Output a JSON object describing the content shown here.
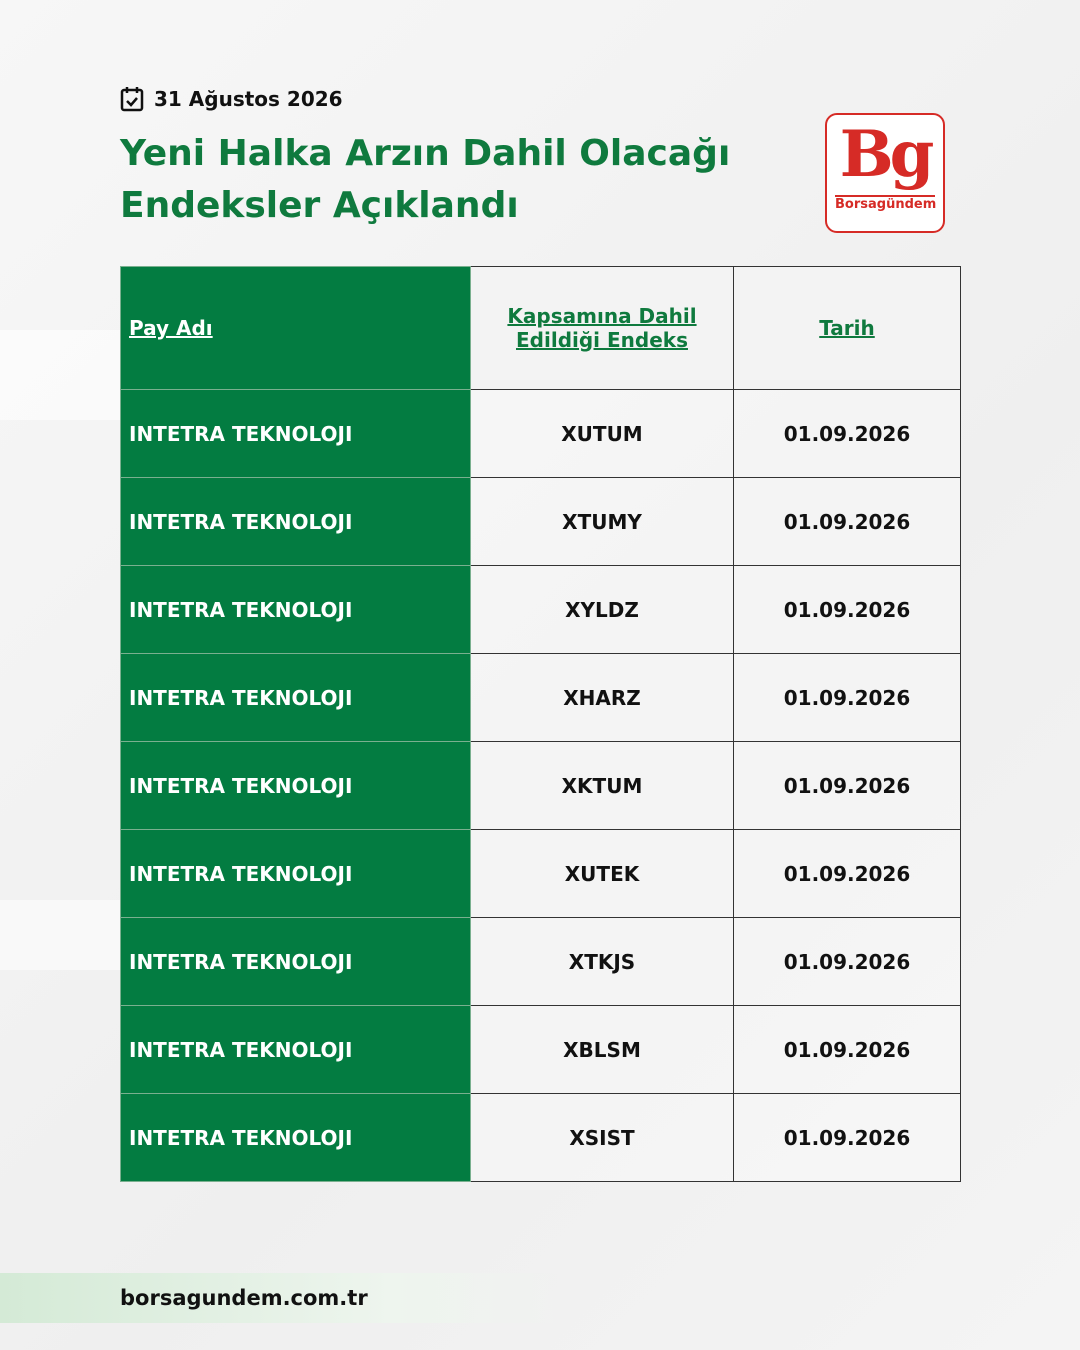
{
  "header": {
    "date": "31 Ağustos 2026",
    "title_line1": "Yeni Halka Arzın Dahil Olacağı",
    "title_line2": "Endeksler Açıklandı",
    "logo_big": "Bg",
    "logo_small": "Borsagündem"
  },
  "table": {
    "headers": [
      "Pay Adı",
      "Kapsamına Dahil Edildiği Endeks",
      "Tarih"
    ],
    "rows": [
      [
        "INTETRA TEKNOLOJI",
        "XUTUM",
        "01.09.2026"
      ],
      [
        "INTETRA TEKNOLOJI",
        "XTUMY",
        "01.09.2026"
      ],
      [
        "INTETRA TEKNOLOJI",
        "XYLDZ",
        "01.09.2026"
      ],
      [
        "INTETRA TEKNOLOJI",
        "XHARZ",
        "01.09.2026"
      ],
      [
        "INTETRA TEKNOLOJI",
        "XKTUM",
        "01.09.2026"
      ],
      [
        "INTETRA TEKNOLOJI",
        "XUTEK",
        "01.09.2026"
      ],
      [
        "INTETRA TEKNOLOJI",
        "XTKJS",
        "01.09.2026"
      ],
      [
        "INTETRA TEKNOLOJI",
        "XBLSM",
        "01.09.2026"
      ],
      [
        "INTETRA TEKNOLOJI",
        "XSIST",
        "01.09.2026"
      ]
    ]
  },
  "footer": {
    "website": "borsagundem.com.tr"
  }
}
